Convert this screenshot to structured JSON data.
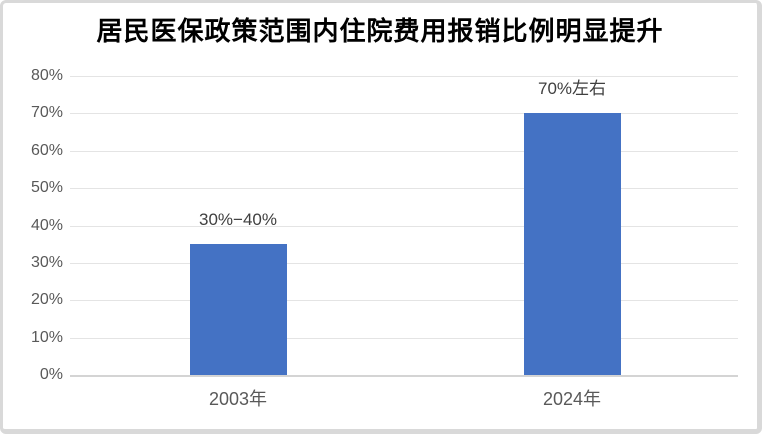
{
  "chart_data": {
    "type": "bar",
    "title": "居民医保政策范围内住院费用报销比例明显提升",
    "categories": [
      "2003年",
      "2024年"
    ],
    "values": [
      35,
      70
    ],
    "data_labels": [
      "30%−40%",
      "70%左右"
    ],
    "xlabel": "",
    "ylabel": "",
    "ylim": [
      0,
      80
    ],
    "yticks": [
      0,
      10,
      20,
      30,
      40,
      50,
      60,
      70,
      80
    ],
    "ytick_labels": [
      "0%",
      "10%",
      "20%",
      "30%",
      "40%",
      "50%",
      "60%",
      "70%",
      "80%"
    ],
    "grid": true,
    "legend": false,
    "colors": {
      "bar": "#4472C4",
      "gridline": "#e4e4e4",
      "axis_line": "#d4d4d4",
      "tick_label": "#595959",
      "data_label": "#3f3f3f",
      "title": "#000000",
      "background": "#ffffff",
      "card_border": "#d9d9d9"
    }
  }
}
